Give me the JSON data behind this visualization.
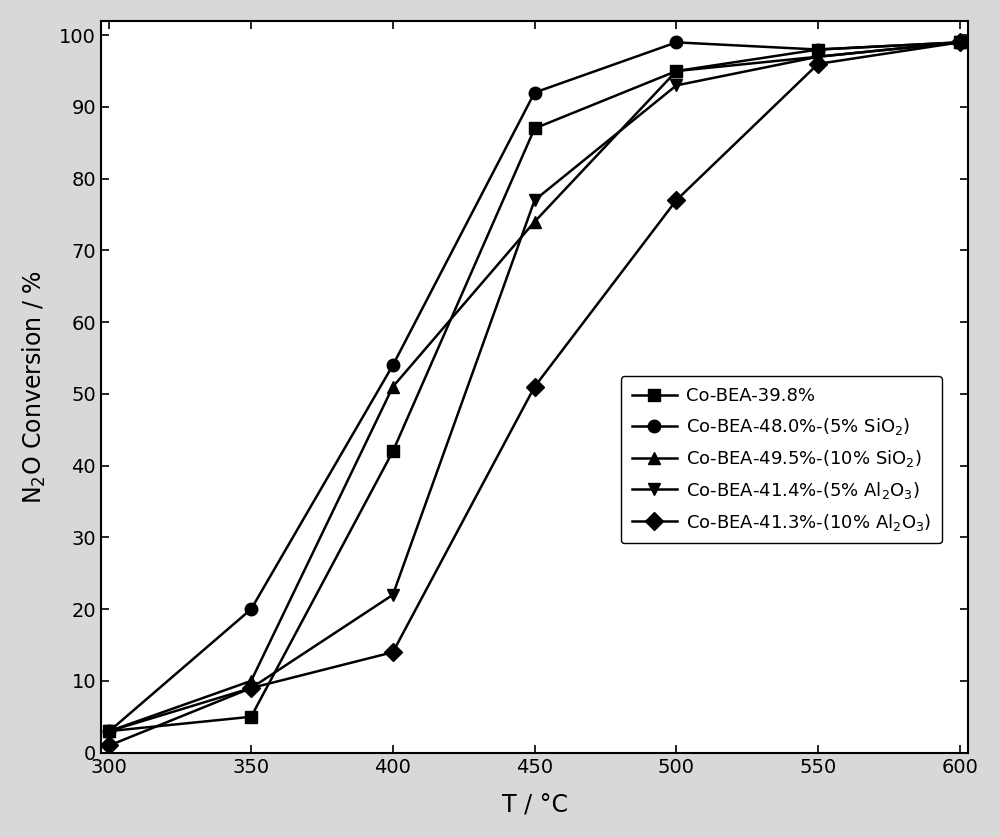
{
  "series": [
    {
      "label": "Co-BEA-39.8%",
      "marker": "s",
      "x": [
        300,
        350,
        400,
        450,
        500,
        550,
        600
      ],
      "y": [
        3,
        5,
        42,
        87,
        95,
        98,
        99
      ]
    },
    {
      "label": "Co-BEA-48.0%-(5% SiO$_2$)",
      "marker": "o",
      "x": [
        300,
        350,
        400,
        450,
        500,
        550,
        600
      ],
      "y": [
        3,
        20,
        54,
        92,
        99,
        98,
        99
      ]
    },
    {
      "label": "Co-BEA-49.5%-(10% SiO$_2$)",
      "marker": "^",
      "x": [
        300,
        350,
        400,
        450,
        500,
        550,
        600
      ],
      "y": [
        3,
        10,
        51,
        74,
        95,
        97,
        99
      ]
    },
    {
      "label": "Co-BEA-41.4%-(5% Al$_2$O$_3$)",
      "marker": "v",
      "x": [
        300,
        350,
        400,
        450,
        500,
        550,
        600
      ],
      "y": [
        3,
        9,
        22,
        77,
        93,
        97,
        99
      ]
    },
    {
      "label": "Co-BEA-41.3%-(10% Al$_2$O$_3$)",
      "marker": "D",
      "x": [
        300,
        350,
        400,
        450,
        500,
        550,
        600
      ],
      "y": [
        1,
        9,
        14,
        51,
        77,
        96,
        99
      ]
    }
  ],
  "xlabel": "T / °C",
  "ylabel": "N$_2$O Conversion / %",
  "xlim": [
    297,
    603
  ],
  "ylim": [
    0,
    102
  ],
  "xticks": [
    300,
    350,
    400,
    450,
    500,
    550,
    600
  ],
  "yticks": [
    0,
    10,
    20,
    30,
    40,
    50,
    60,
    70,
    80,
    90,
    100
  ],
  "line_color": "black",
  "marker_color": "black",
  "marker_size": 9,
  "linewidth": 1.8,
  "background_color": "#ffffff",
  "fig_background": "#d8d8d8"
}
